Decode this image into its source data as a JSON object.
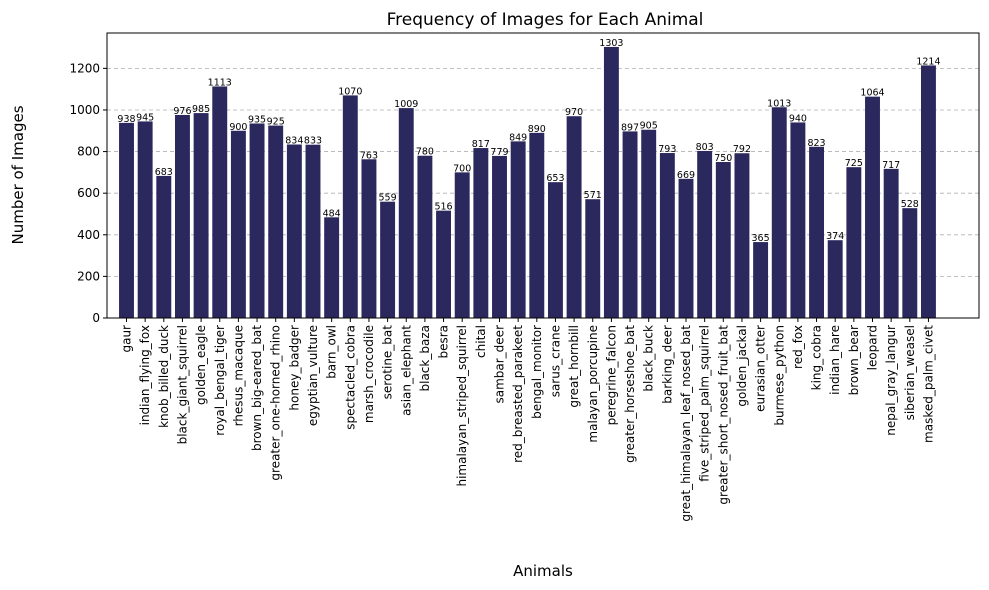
{
  "chart_data": {
    "type": "bar",
    "title": "Frequency of Images for Each Animal",
    "xlabel": "Animals",
    "ylabel": "Number of Images",
    "ylim": [
      0,
      1370
    ],
    "yticks": [
      0,
      200,
      400,
      600,
      800,
      1000,
      1200
    ],
    "grid": "y-axis dashed",
    "bar_color": "#2b285e",
    "categories": [
      "gaur",
      "indian_flying_fox",
      "knob_billed_duck",
      "black_giant_squirrel",
      "golden_eagle",
      "royal_bengal_tiger",
      "rhesus_macaque",
      "brown_big-eared_bat",
      "greater_one-horned_rhino",
      "honey_badger",
      "egyptian_vulture",
      "barn_owl",
      "spectacled_cobra",
      "marsh_crocodile",
      "serotine_bat",
      "asian_elephant",
      "black_baza",
      "besra",
      "himalayan_striped_squirrel",
      "chital",
      "sambar_deer",
      "red_breasted_parakeet",
      "bengal_monitor",
      "sarus_crane",
      "great_hornbill",
      "malayan_porcupine",
      "peregrine_falcon",
      "greater_horseshoe_bat",
      "black_buck",
      "barking_deer",
      "great_himalayan_leaf_nosed_bat",
      "five_striped_palm_squirrel",
      "greater_short_nosed_fruit_bat",
      "golden_jackal",
      "eurasian_otter",
      "burmese_python",
      "red_fox",
      "king_cobra",
      "indian_hare",
      "brown_bear",
      "leopard",
      "nepal_gray_langur",
      "siberian_weasel",
      "masked_palm_civet"
    ],
    "values": [
      938,
      945,
      683,
      976,
      985,
      1113,
      900,
      935,
      925,
      834,
      833,
      484,
      1070,
      763,
      559,
      1009,
      780,
      516,
      700,
      817,
      779,
      849,
      890,
      653,
      970,
      571,
      1303,
      897,
      905,
      793,
      669,
      803,
      750,
      792,
      365,
      1013,
      940,
      823,
      374,
      725,
      1064,
      717,
      528,
      1214
    ]
  }
}
